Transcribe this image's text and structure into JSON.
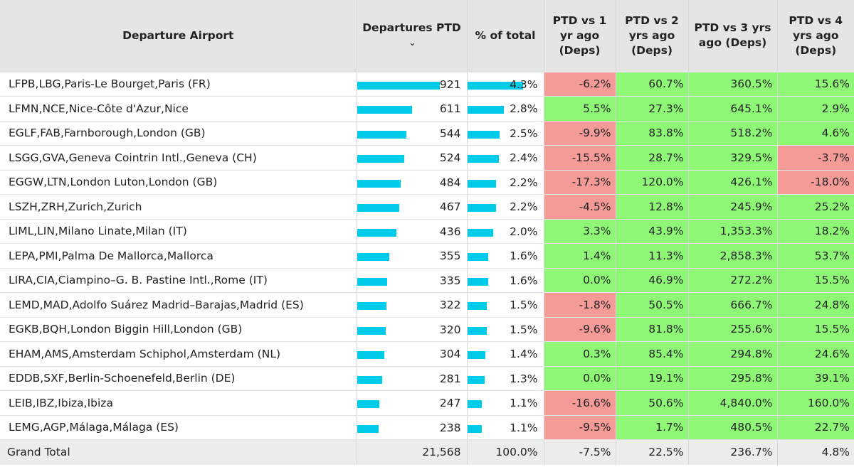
{
  "headers": {
    "airport": "Departure Airport",
    "departures": "Departures PTD",
    "departures_sort_icon": "chevron-down-icon",
    "pct_total": "% of total",
    "vs1": "PTD vs 1 yr ago (Deps)",
    "vs2": "PTD vs 2 yrs ago (Deps)",
    "vs3": "PTD vs 3 yrs ago (Deps)",
    "vs4": "PTD vs 4 yrs ago (Deps)"
  },
  "colors": {
    "bar": "#00ccea",
    "positive": "#8ef876",
    "negative": "#f59b97",
    "header_bg": "#e5e5e5"
  },
  "rows": [
    {
      "airport": "LFPB,LBG,Paris-Le Bourget,Paris (FR)",
      "departures": "921",
      "departures_value": 921,
      "pct": "4.3%",
      "pct_value": 4.3,
      "vs1": "-6.2%",
      "vs2": "60.7%",
      "vs3": "360.5%",
      "vs4": "15.6%"
    },
    {
      "airport": "LFMN,NCE,Nice-Côte d'Azur,Nice",
      "departures": "611",
      "departures_value": 611,
      "pct": "2.8%",
      "pct_value": 2.8,
      "vs1": "5.5%",
      "vs2": "27.3%",
      "vs3": "645.1%",
      "vs4": "2.9%"
    },
    {
      "airport": "EGLF,FAB,Farnborough,London (GB)",
      "departures": "544",
      "departures_value": 544,
      "pct": "2.5%",
      "pct_value": 2.5,
      "vs1": "-9.9%",
      "vs2": "83.8%",
      "vs3": "518.2%",
      "vs4": "4.6%"
    },
    {
      "airport": "LSGG,GVA,Geneva Cointrin Intl.,Geneva (CH)",
      "departures": "524",
      "departures_value": 524,
      "pct": "2.4%",
      "pct_value": 2.4,
      "vs1": "-15.5%",
      "vs2": "28.7%",
      "vs3": "329.5%",
      "vs4": "-3.7%"
    },
    {
      "airport": "EGGW,LTN,London Luton,London (GB)",
      "departures": "484",
      "departures_value": 484,
      "pct": "2.2%",
      "pct_value": 2.2,
      "vs1": "-17.3%",
      "vs2": "120.0%",
      "vs3": "426.1%",
      "vs4": "-18.0%"
    },
    {
      "airport": "LSZH,ZRH,Zurich,Zurich",
      "departures": "467",
      "departures_value": 467,
      "pct": "2.2%",
      "pct_value": 2.2,
      "vs1": "-4.5%",
      "vs2": "12.8%",
      "vs3": "245.9%",
      "vs4": "25.2%"
    },
    {
      "airport": "LIML,LIN,Milano Linate,Milan (IT)",
      "departures": "436",
      "departures_value": 436,
      "pct": "2.0%",
      "pct_value": 2.0,
      "vs1": "3.3%",
      "vs2": "43.9%",
      "vs3": "1,353.3%",
      "vs4": "18.2%"
    },
    {
      "airport": "LEPA,PMI,Palma De Mallorca,Mallorca",
      "departures": "355",
      "departures_value": 355,
      "pct": "1.6%",
      "pct_value": 1.6,
      "vs1": "1.4%",
      "vs2": "11.3%",
      "vs3": "2,858.3%",
      "vs4": "53.7%"
    },
    {
      "airport": "LIRA,CIA,Ciampino–G. B. Pastine Intl.,Rome (IT)",
      "departures": "335",
      "departures_value": 335,
      "pct": "1.6%",
      "pct_value": 1.6,
      "vs1": "0.0%",
      "vs2": "46.9%",
      "vs3": "272.2%",
      "vs4": "15.5%"
    },
    {
      "airport": "LEMD,MAD,Adolfo Suárez Madrid–Barajas,Madrid (ES)",
      "departures": "322",
      "departures_value": 322,
      "pct": "1.5%",
      "pct_value": 1.5,
      "vs1": "-1.8%",
      "vs2": "50.5%",
      "vs3": "666.7%",
      "vs4": "24.8%"
    },
    {
      "airport": "EGKB,BQH,London Biggin Hill,London (GB)",
      "departures": "320",
      "departures_value": 320,
      "pct": "1.5%",
      "pct_value": 1.5,
      "vs1": "-9.6%",
      "vs2": "81.8%",
      "vs3": "255.6%",
      "vs4": "15.5%"
    },
    {
      "airport": "EHAM,AMS,Amsterdam Schiphol,Amsterdam (NL)",
      "departures": "304",
      "departures_value": 304,
      "pct": "1.4%",
      "pct_value": 1.4,
      "vs1": "0.3%",
      "vs2": "85.4%",
      "vs3": "294.8%",
      "vs4": "24.6%"
    },
    {
      "airport": "EDDB,SXF,Berlin-Schoenefeld,Berlin (DE)",
      "departures": "281",
      "departures_value": 281,
      "pct": "1.3%",
      "pct_value": 1.3,
      "vs1": "0.0%",
      "vs2": "19.1%",
      "vs3": "295.8%",
      "vs4": "39.1%"
    },
    {
      "airport": "LEIB,IBZ,Ibiza,Ibiza",
      "departures": "247",
      "departures_value": 247,
      "pct": "1.1%",
      "pct_value": 1.1,
      "vs1": "-16.6%",
      "vs2": "50.6%",
      "vs3": "4,840.0%",
      "vs4": "160.0%"
    },
    {
      "airport": "LEMG,AGP,Málaga,Málaga (ES)",
      "departures": "238",
      "departures_value": 238,
      "pct": "1.1%",
      "pct_value": 1.1,
      "vs1": "-9.5%",
      "vs2": "1.7%",
      "vs3": "480.5%",
      "vs4": "22.7%"
    }
  ],
  "grand_total": {
    "label": "Grand Total",
    "departures": "21,568",
    "pct": "100.0%",
    "vs1": "-7.5%",
    "vs2": "22.5%",
    "vs3": "236.7%",
    "vs4": "4.8%"
  }
}
